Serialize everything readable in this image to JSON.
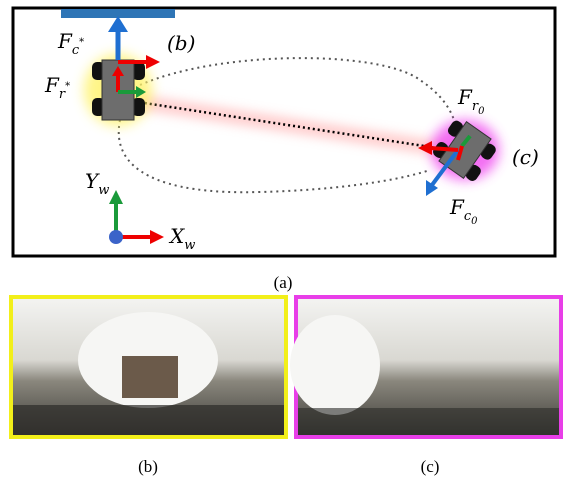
{
  "scene": {
    "labels": {
      "f_c_star": {
        "base": "F",
        "sub": "c",
        "mark": "*"
      },
      "f_r_star": {
        "base": "F",
        "sub": "r",
        "mark": "*"
      },
      "f_r_0": {
        "base": "F",
        "sub": "r",
        "mark": "0"
      },
      "f_c_0": {
        "base": "F",
        "sub": "c",
        "mark": "0"
      }
    },
    "panel_tags": {
      "b": "(b)",
      "c": "(c)"
    },
    "axes": {
      "y": {
        "base": "Y",
        "sub": "w"
      },
      "x": {
        "base": "X",
        "sub": "w"
      }
    }
  },
  "captions": {
    "a": "(a)",
    "b": "(b)",
    "c": "(c)"
  }
}
